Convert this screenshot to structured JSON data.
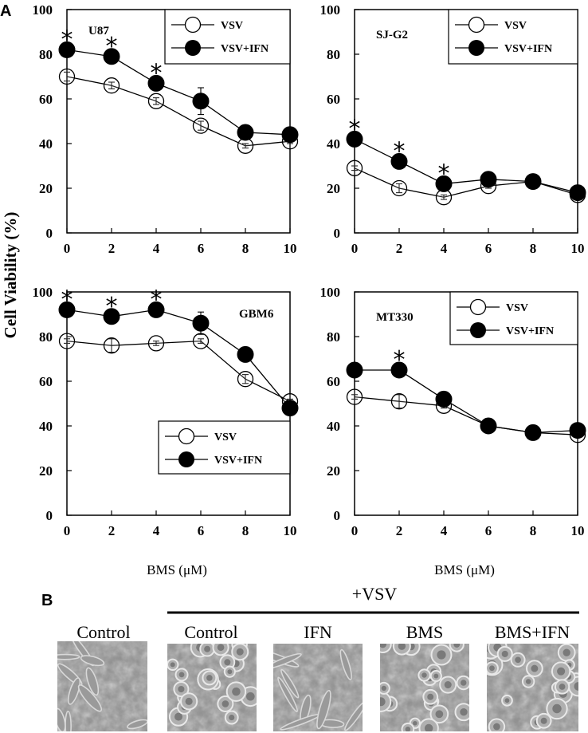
{
  "figure": {
    "panel_a": "A",
    "panel_b": "B",
    "ylabel": "Cell Viability (%)",
    "xlabel": "BMS (μM)",
    "marker": "*"
  },
  "chart_data": [
    {
      "type": "line",
      "name": "U87",
      "x": [
        0,
        2,
        4,
        6,
        8,
        10
      ],
      "xticks": [
        0,
        2,
        4,
        6,
        8,
        10
      ],
      "yticks": [
        0,
        20,
        40,
        60,
        80,
        100
      ],
      "ylim": [
        0,
        100
      ],
      "xlim": [
        0,
        10
      ],
      "legend": "top-right",
      "series": [
        {
          "name": "VSV",
          "values": [
            70,
            66,
            59,
            48,
            39,
            41
          ],
          "marker": "open",
          "err": [
            2,
            1.5,
            1.5,
            2,
            1,
            1
          ]
        },
        {
          "name": "VSV+IFN",
          "values": [
            82,
            79,
            67,
            59,
            45,
            44
          ],
          "marker": "filled",
          "err": [
            1,
            1.5,
            1.5,
            6,
            1,
            1
          ]
        }
      ],
      "significant_x": [
        0,
        2,
        4
      ]
    },
    {
      "type": "line",
      "name": "SJ-G2",
      "x": [
        0,
        2,
        4,
        6,
        8,
        10
      ],
      "xticks": [
        0,
        2,
        4,
        6,
        8,
        10
      ],
      "yticks": [
        0,
        20,
        40,
        60,
        80,
        100
      ],
      "ylim": [
        0,
        100
      ],
      "xlim": [
        0,
        10
      ],
      "legend": "top-right",
      "series": [
        {
          "name": "VSV",
          "values": [
            29,
            20,
            16,
            21,
            23,
            17
          ],
          "marker": "open",
          "err": [
            1,
            2,
            1,
            1,
            1,
            1
          ]
        },
        {
          "name": "VSV+IFN",
          "values": [
            42,
            32,
            22,
            24,
            23,
            18
          ],
          "marker": "filled",
          "err": [
            1,
            1,
            1,
            1,
            1,
            1
          ]
        }
      ],
      "significant_x": [
        0,
        2,
        4
      ]
    },
    {
      "type": "line",
      "name": "GBM6",
      "x": [
        0,
        2,
        4,
        6,
        8,
        10
      ],
      "xticks": [
        0,
        2,
        4,
        6,
        8,
        10
      ],
      "yticks": [
        0,
        20,
        40,
        60,
        80,
        100
      ],
      "ylim": [
        0,
        100
      ],
      "xlim": [
        0,
        10
      ],
      "legend": "bottom-right",
      "series": [
        {
          "name": "VSV",
          "values": [
            78,
            76,
            77,
            78,
            61,
            51
          ],
          "marker": "open",
          "err": [
            1,
            3,
            1,
            1,
            2,
            1
          ]
        },
        {
          "name": "VSV+IFN",
          "values": [
            92,
            89,
            92,
            86,
            72,
            48
          ],
          "marker": "filled",
          "err": [
            1,
            1,
            1,
            5,
            1,
            1
          ]
        }
      ],
      "significant_x": [
        0,
        2,
        4
      ]
    },
    {
      "type": "line",
      "name": "MT330",
      "x": [
        0,
        2,
        4,
        6,
        8,
        10
      ],
      "xticks": [
        0,
        2,
        4,
        6,
        8,
        10
      ],
      "yticks": [
        0,
        20,
        40,
        60,
        80,
        100
      ],
      "ylim": [
        0,
        100
      ],
      "xlim": [
        0,
        10
      ],
      "legend": "top-right",
      "series": [
        {
          "name": "VSV",
          "values": [
            53,
            51,
            49,
            40,
            37,
            36
          ],
          "marker": "open",
          "err": [
            1,
            3,
            1,
            1,
            1,
            1
          ]
        },
        {
          "name": "VSV+IFN",
          "values": [
            65,
            65,
            52,
            40,
            37,
            38
          ],
          "marker": "filled",
          "err": [
            1,
            1,
            1,
            1,
            1,
            1
          ]
        }
      ],
      "significant_x": [
        2
      ]
    }
  ],
  "panel_b_labels": {
    "vsv_group": "+VSV",
    "images": [
      "Control",
      "Control",
      "IFN",
      "BMS",
      "BMS+IFN"
    ]
  }
}
